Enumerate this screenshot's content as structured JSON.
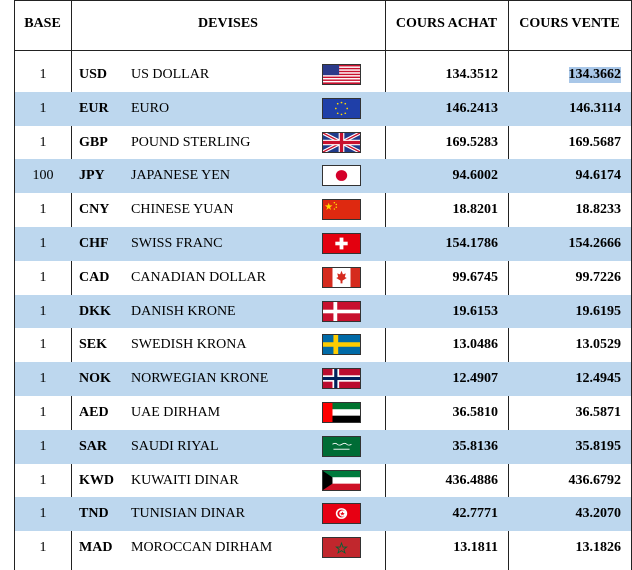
{
  "header": {
    "base": "BASE",
    "devises": "DEVISES",
    "achat": "COURS ACHAT",
    "vente": "COURS VENTE"
  },
  "rows": [
    {
      "base": "1",
      "code": "USD",
      "name": "US DOLLAR",
      "achat": "134.3512",
      "vente": "134.3662",
      "flag": "us-flag-icon"
    },
    {
      "base": "1",
      "code": "EUR",
      "name": "EURO",
      "achat": "146.2413",
      "vente": "146.3114",
      "flag": "eu-flag-icon"
    },
    {
      "base": "1",
      "code": "GBP",
      "name": "POUND STERLING",
      "achat": "169.5283",
      "vente": "169.5687",
      "flag": "uk-flag-icon"
    },
    {
      "base": "100",
      "code": "JPY",
      "name": "JAPANESE YEN",
      "achat": "94.6002",
      "vente": "94.6174",
      "flag": "japan-flag-icon"
    },
    {
      "base": "1",
      "code": "CNY",
      "name": "CHINESE YUAN",
      "achat": "18.8201",
      "vente": "18.8233",
      "flag": "china-flag-icon"
    },
    {
      "base": "1",
      "code": "CHF",
      "name": "SWISS FRANC",
      "achat": "154.1786",
      "vente": "154.2666",
      "flag": "swiss-flag-icon"
    },
    {
      "base": "1",
      "code": "CAD",
      "name": "CANADIAN DOLLAR",
      "achat": "99.6745",
      "vente": "99.7226",
      "flag": "canada-flag-icon"
    },
    {
      "base": "1",
      "code": "DKK",
      "name": "DANISH KRONE",
      "achat": "19.6153",
      "vente": "19.6195",
      "flag": "denmark-flag-icon"
    },
    {
      "base": "1",
      "code": "SEK",
      "name": "SWEDISH KRONA",
      "achat": "13.0486",
      "vente": "13.0529",
      "flag": "sweden-flag-icon"
    },
    {
      "base": "1",
      "code": "NOK",
      "name": "NORWEGIAN KRONE",
      "achat": "12.4907",
      "vente": "12.4945",
      "flag": "norway-flag-icon"
    },
    {
      "base": "1",
      "code": "AED",
      "name": "UAE DIRHAM",
      "achat": "36.5810",
      "vente": "36.5871",
      "flag": "uae-flag-icon"
    },
    {
      "base": "1",
      "code": "SAR",
      "name": "SAUDI RIYAL",
      "achat": "35.8136",
      "vente": "35.8195",
      "flag": "saudi-flag-icon"
    },
    {
      "base": "1",
      "code": "KWD",
      "name": "KUWAITI DINAR",
      "achat": "436.4886",
      "vente": "436.6792",
      "flag": "kuwait-flag-icon"
    },
    {
      "base": "1",
      "code": "TND",
      "name": "TUNISIAN DINAR",
      "achat": "42.7771",
      "vente": "43.2070",
      "flag": "tunisia-flag-icon"
    },
    {
      "base": "1",
      "code": "MAD",
      "name": "MOROCCAN DIRHAM",
      "achat": "13.1811",
      "vente": "13.1826",
      "flag": "morocco-flag-icon"
    }
  ],
  "colors": {
    "row_shade": "#bdd7ee",
    "selection": "#a9c7e8"
  }
}
